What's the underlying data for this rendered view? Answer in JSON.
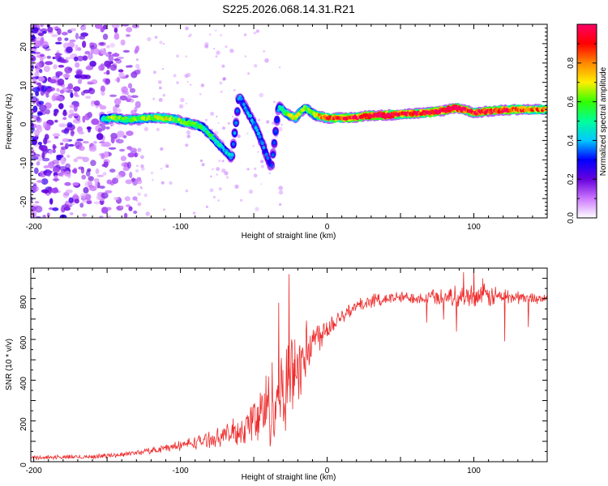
{
  "title": "S225.2026.068.14.31.R21",
  "colors": {
    "snr_line": "#ee2c2c",
    "background": "#ffffff",
    "axis": "#000000"
  },
  "chart_data": [
    {
      "type": "heatmap",
      "name": "spectrogram",
      "xlabel": "Height of straight line (km)",
      "ylabel": "Frequency (Hz)",
      "xlim": [
        -202,
        150
      ],
      "ylim": [
        -25,
        25
      ],
      "xticks": [
        -200,
        -100,
        0,
        100
      ],
      "yticks": [
        -20,
        -10,
        0,
        10,
        20
      ],
      "colorbar": {
        "label": "Normalized spectral amplitude",
        "range": [
          0,
          1
        ],
        "ticks": [
          0.0,
          0.2,
          0.4,
          0.6,
          0.8
        ],
        "tick_labels": [
          "0.0",
          "0.2",
          "0.4",
          "0.6",
          "0.8"
        ],
        "colormap": [
          "#ffffff",
          "#cc77ff",
          "#6600dd",
          "#0000ff",
          "#00c8ff",
          "#00ff99",
          "#33ff00",
          "#ffee00",
          "#ff8800",
          "#ff0000",
          "#ff0066"
        ]
      },
      "noise_region_km": [
        -205,
        -128
      ],
      "ridge": [
        {
          "x": -153,
          "y": 0.5,
          "a": 0.45
        },
        {
          "x": -145,
          "y": 0.8,
          "a": 0.55
        },
        {
          "x": -135,
          "y": 0.3,
          "a": 0.5
        },
        {
          "x": -125,
          "y": 0.7,
          "a": 0.55
        },
        {
          "x": -115,
          "y": 0.9,
          "a": 0.6
        },
        {
          "x": -105,
          "y": 0.5,
          "a": 0.55
        },
        {
          "x": -95,
          "y": -0.5,
          "a": 0.55
        },
        {
          "x": -85,
          "y": -1.5,
          "a": 0.5
        },
        {
          "x": -80,
          "y": -3.5,
          "a": 0.45
        },
        {
          "x": -75,
          "y": -5.5,
          "a": 0.45
        },
        {
          "x": -70,
          "y": -7.5,
          "a": 0.4
        },
        {
          "x": -65,
          "y": -9.5,
          "a": 0.35
        },
        {
          "x": -60,
          "y": 6.5,
          "a": 0.3
        },
        {
          "x": -55,
          "y": 3.0,
          "a": 0.35
        },
        {
          "x": -50,
          "y": -0.5,
          "a": 0.35
        },
        {
          "x": -46,
          "y": -4.0,
          "a": 0.3
        },
        {
          "x": -42,
          "y": -8.0,
          "a": 0.3
        },
        {
          "x": -38,
          "y": -12.0,
          "a": 0.25
        },
        {
          "x": -33,
          "y": 4.0,
          "a": 0.35
        },
        {
          "x": -28,
          "y": 2.0,
          "a": 0.55
        },
        {
          "x": -22,
          "y": 0.8,
          "a": 0.6
        },
        {
          "x": -15,
          "y": 3.5,
          "a": 0.5
        },
        {
          "x": -8,
          "y": 1.5,
          "a": 0.6
        },
        {
          "x": 0,
          "y": 0.8,
          "a": 0.75
        },
        {
          "x": 10,
          "y": 0.8,
          "a": 0.75
        },
        {
          "x": 20,
          "y": 1.0,
          "a": 0.8
        },
        {
          "x": 30,
          "y": 1.5,
          "a": 0.9
        },
        {
          "x": 40,
          "y": 1.5,
          "a": 0.95
        },
        {
          "x": 50,
          "y": 1.8,
          "a": 0.8
        },
        {
          "x": 60,
          "y": 2.0,
          "a": 0.8
        },
        {
          "x": 70,
          "y": 2.2,
          "a": 0.85
        },
        {
          "x": 80,
          "y": 2.8,
          "a": 0.9
        },
        {
          "x": 88,
          "y": 3.5,
          "a": 0.95
        },
        {
          "x": 95,
          "y": 2.8,
          "a": 0.8
        },
        {
          "x": 100,
          "y": 2.2,
          "a": 0.8
        },
        {
          "x": 110,
          "y": 2.5,
          "a": 0.85
        },
        {
          "x": 120,
          "y": 2.8,
          "a": 0.85
        },
        {
          "x": 130,
          "y": 3.0,
          "a": 0.75
        },
        {
          "x": 140,
          "y": 3.0,
          "a": 0.7
        },
        {
          "x": 150,
          "y": 3.0,
          "a": 0.7
        }
      ]
    },
    {
      "type": "line",
      "name": "snr",
      "xlabel": "Height of straight line (km)",
      "ylabel": "SNR (10 * v/v)",
      "xlim": [
        -202,
        150
      ],
      "ylim": [
        0,
        950
      ],
      "xticks": [
        -200,
        -100,
        0,
        100
      ],
      "yticks": [
        0,
        200,
        400,
        600,
        800
      ],
      "series": [
        {
          "name": "SNR",
          "trend": {
            "x": [
              -202,
              -160,
              -140,
              -120,
              -100,
              -80,
              -60,
              -50,
              -40,
              -30,
              -20,
              -10,
              0,
              10,
              20,
              30,
              40,
              50,
              60,
              80,
              100,
              120,
              150
            ],
            "y": [
              20,
              25,
              35,
              55,
              80,
              110,
              150,
              200,
              270,
              360,
              470,
              590,
              660,
              720,
              760,
              790,
              800,
              805,
              805,
              810,
              815,
              810,
              800
            ]
          },
          "noise_amplitude": {
            "x": [
              -202,
              -130,
              -100,
              -70,
              -55,
              -45,
              -35,
              -25,
              -15,
              -5,
              10,
              30,
              60,
              90,
              110,
              130,
              150
            ],
            "y": [
              12,
              15,
              30,
              55,
              110,
              200,
              280,
              260,
              180,
              90,
              50,
              40,
              35,
              60,
              70,
              40,
              25
            ]
          },
          "spikes": [
            {
              "x": -26,
              "y": 920
            },
            {
              "x": -33,
              "y": 780
            },
            {
              "x": -22,
              "y": 600
            },
            {
              "x": 100,
              "y": 950
            },
            {
              "x": 93,
              "y": 930
            },
            {
              "x": 106,
              "y": 900
            }
          ]
        }
      ]
    }
  ]
}
